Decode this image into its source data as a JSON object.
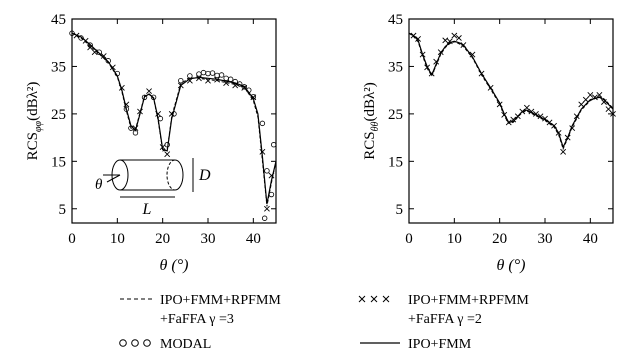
{
  "chart_data": [
    {
      "type": "line",
      "ylabel_main": "RCS",
      "ylabel_sub": "φφ",
      "ylabel_unit": "(dBλ²)",
      "xlabel": "θ (°)",
      "xlim": [
        0,
        45
      ],
      "ylim": [
        2,
        45
      ],
      "x_ticks": [
        0,
        10,
        20,
        30,
        40
      ],
      "y_ticks": [
        5,
        15,
        25,
        35,
        45
      ],
      "inset": {
        "theta_label": "θ",
        "D_label": "D",
        "L_label": "L"
      },
      "series": [
        {
          "name": "IPO+FMM",
          "x": [
            0,
            2,
            4,
            6,
            8,
            10,
            11,
            12,
            13,
            14,
            15,
            16,
            17,
            18,
            19,
            20,
            21,
            22,
            24,
            26,
            28,
            30,
            32,
            34,
            36,
            38,
            40,
            41,
            42,
            43,
            44,
            45
          ],
          "y": [
            42,
            41.2,
            39.6,
            37.8,
            36,
            33,
            30,
            26,
            22.5,
            21.5,
            25,
            28.6,
            29.2,
            28.4,
            24,
            17.5,
            17.2,
            24,
            31,
            32.4,
            32.7,
            32.5,
            32.3,
            31.9,
            31.5,
            30.8,
            28.2,
            25,
            16,
            6,
            11,
            15
          ]
        },
        {
          "name": "IPO+FMM+RPFMM+FaFFA γ=3",
          "x": [
            0,
            2,
            4,
            6,
            8,
            10,
            11,
            12,
            13,
            14,
            15,
            16,
            17,
            18,
            19,
            20,
            21,
            22,
            24,
            26,
            28,
            30,
            32,
            34,
            36,
            38,
            40,
            41,
            42,
            43,
            44,
            45
          ],
          "y": [
            42,
            41,
            39.3,
            37.6,
            35.8,
            32.8,
            29.6,
            25.6,
            22,
            21.8,
            25.3,
            28.8,
            29.1,
            28.2,
            23.6,
            17.2,
            17.5,
            24.5,
            31.4,
            32.6,
            32.5,
            32.2,
            32,
            31.6,
            31.2,
            30.6,
            27.8,
            24.3,
            15,
            5.5,
            10.5,
            15
          ]
        },
        {
          "name": "IPO+FMM+RPFMM+FaFFA γ=2",
          "x": [
            1,
            3,
            4,
            5,
            7,
            9,
            11,
            12,
            14,
            15,
            17,
            19,
            20,
            21,
            22,
            24,
            26,
            28,
            30,
            32,
            34,
            36,
            38,
            40,
            42,
            43,
            44
          ],
          "y": [
            41.5,
            40.4,
            39,
            38,
            37.2,
            34.8,
            30.5,
            27,
            22,
            25.5,
            29.8,
            25,
            18,
            16.5,
            25,
            31,
            32,
            32.5,
            32,
            32.2,
            31.5,
            31,
            30.5,
            28.5,
            17,
            5,
            12
          ]
        },
        {
          "name": "MODAL",
          "x": [
            0,
            2,
            4,
            6,
            8,
            10,
            12,
            13,
            14,
            16,
            18,
            19.5,
            21,
            22.5,
            24,
            26,
            28,
            29,
            30,
            31,
            32,
            33,
            34,
            35,
            36,
            37,
            38,
            39,
            40,
            42,
            42.5,
            43,
            44,
            44.5
          ],
          "y": [
            42,
            41,
            39.5,
            38,
            36.2,
            33.5,
            26,
            22,
            21,
            28.5,
            28.5,
            24,
            18.5,
            25,
            32,
            33,
            33.4,
            33.7,
            33.5,
            33.6,
            33.1,
            33.2,
            32.5,
            32.3,
            31.8,
            31.3,
            30.7,
            30,
            28.6,
            23,
            3,
            13,
            8,
            18.5
          ]
        }
      ]
    },
    {
      "type": "line",
      "ylabel_main": "RCS",
      "ylabel_sub": "θθ",
      "ylabel_unit": "(dBλ²)",
      "xlabel": "θ (°)",
      "xlim": [
        0,
        45
      ],
      "ylim": [
        2,
        45
      ],
      "x_ticks": [
        0,
        10,
        20,
        30,
        40
      ],
      "y_ticks": [
        5,
        15,
        25,
        35,
        45
      ],
      "series": [
        {
          "name": "IPO+FMM",
          "x": [
            0,
            1,
            2,
            3,
            4,
            5,
            6,
            7,
            8,
            9,
            10,
            11,
            12,
            14,
            16,
            18,
            20,
            21,
            22,
            23,
            24,
            25,
            26,
            27,
            28,
            30,
            32,
            33,
            34,
            35,
            36,
            38,
            40,
            42,
            43,
            44,
            45
          ],
          "y": [
            42,
            41.5,
            40.5,
            37.5,
            35,
            33.2,
            35.5,
            37.8,
            39.2,
            40,
            40.3,
            40,
            39.5,
            37,
            33.5,
            30.5,
            27.3,
            25,
            23.2,
            23.4,
            24.5,
            25.5,
            25.8,
            25.3,
            24.8,
            23.8,
            22.5,
            21,
            18,
            20,
            22.5,
            26,
            28,
            28.5,
            28,
            27,
            26
          ]
        },
        {
          "name": "IPO+FMM+RPFMM+FaFFA γ=3",
          "x": [
            0,
            1,
            2,
            3,
            4,
            5,
            6,
            7,
            8,
            9,
            10,
            11,
            12,
            14,
            16,
            18,
            20,
            21,
            22,
            23,
            24,
            25,
            26,
            27,
            28,
            30,
            32,
            33,
            34,
            35,
            36,
            38,
            40,
            42,
            43,
            44,
            45
          ],
          "y": [
            42,
            41.3,
            40.2,
            37.2,
            34.6,
            33,
            35.2,
            37.5,
            39,
            39.8,
            40.2,
            39.8,
            39.2,
            36.8,
            33.2,
            30.2,
            27,
            24.6,
            23,
            23.2,
            24.3,
            25.3,
            25.6,
            25.1,
            24.6,
            23.6,
            22.2,
            20.6,
            17.6,
            19.8,
            22.2,
            25.8,
            27.8,
            28.6,
            28.2,
            27.2,
            26.2
          ]
        },
        {
          "name": "IPO+FMM+RPFMM+FaFFA γ=2",
          "x": [
            1,
            2,
            3,
            4,
            5,
            6,
            7,
            8,
            9,
            10,
            11,
            12,
            14,
            16,
            18,
            20,
            21,
            22,
            23,
            24,
            25,
            26,
            27,
            28,
            29,
            30,
            31,
            32,
            33,
            34,
            35,
            36,
            37,
            38,
            39,
            40,
            41,
            42,
            43,
            44,
            45
          ],
          "y": [
            41.5,
            40.8,
            37.5,
            34.8,
            33.5,
            36,
            38,
            40.5,
            40.3,
            41.5,
            41,
            39.5,
            37.5,
            33.5,
            30.5,
            27,
            24.8,
            23.2,
            23.8,
            24.5,
            25.5,
            26.3,
            25.5,
            25,
            24.5,
            24,
            23.2,
            22.5,
            21,
            17,
            20,
            22,
            24.5,
            27,
            28,
            29,
            28.5,
            29,
            27.5,
            26,
            25
          ]
        }
      ]
    }
  ],
  "legend": [
    {
      "marker": "dashed",
      "line1": "IPO+FMM+RPFMM",
      "line2": "+FaFFA   γ =3"
    },
    {
      "marker": "cross",
      "line1": "IPO+FMM+RPFMM",
      "line2": "+FaFFA   γ =2"
    },
    {
      "marker": "circle",
      "line1": "MODAL"
    },
    {
      "marker": "solid",
      "line1": "IPO+FMM"
    }
  ]
}
